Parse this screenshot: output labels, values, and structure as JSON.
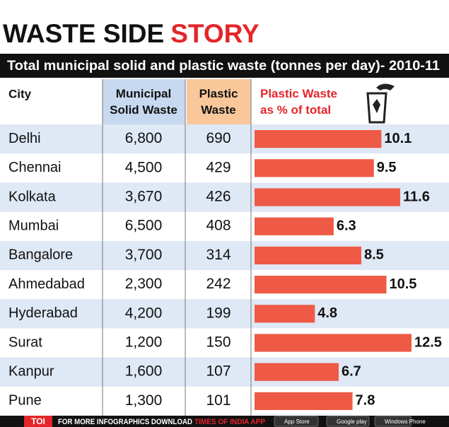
{
  "title_black": "WASTE SIDE",
  "title_red": "STORY",
  "subtitle": "Total municipal solid and plastic waste (tonnes per day)- 2010-11",
  "table": {
    "headers": {
      "city": "City",
      "msw": "Municipal Solid Waste",
      "plastic": "Plastic Waste",
      "pct": "Plastic Waste as % of total"
    },
    "rows": [
      {
        "city": "Delhi",
        "msw": "6,800",
        "plastic": "690",
        "pct": 10.1
      },
      {
        "city": "Chennai",
        "msw": "4,500",
        "plastic": "429",
        "pct": 9.5
      },
      {
        "city": "Kolkata",
        "msw": "3,670",
        "plastic": "426",
        "pct": 11.6
      },
      {
        "city": "Mumbai",
        "msw": "6,500",
        "plastic": "408",
        "pct": 6.3
      },
      {
        "city": "Bangalore",
        "msw": "3,700",
        "plastic": "314",
        "pct": 8.5
      },
      {
        "city": "Ahmedabad",
        "msw": "2,300",
        "plastic": "242",
        "pct": 10.5
      },
      {
        "city": "Hyderabad",
        "msw": "4,200",
        "plastic": "199",
        "pct": 4.8
      },
      {
        "city": "Surat",
        "msw": "1,200",
        "plastic": "150",
        "pct": 12.5
      },
      {
        "city": "Kanpur",
        "msw": "1,600",
        "plastic": "107",
        "pct": 6.7
      },
      {
        "city": "Pune",
        "msw": "1,300",
        "plastic": "101",
        "pct": 7.8
      }
    ]
  },
  "bar_color": "#ee5a45",
  "footer": {
    "logo": "TOI",
    "text": "FOR MORE INFOGRAPHICS DOWNLOAD",
    "app": "TIMES OF INDIA APP",
    "badges": [
      "App Store",
      "Google play",
      "Windows Phone"
    ]
  }
}
